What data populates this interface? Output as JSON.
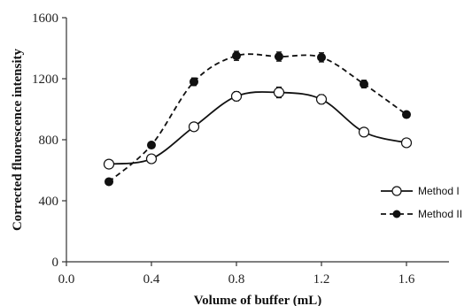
{
  "chart_data": {
    "type": "line",
    "xlabel": "Volume of buffer (mL)",
    "ylabel": "Corrected fluorescence intensity",
    "xlim": [
      0.0,
      1.8
    ],
    "ylim": [
      0,
      1600
    ],
    "x_ticks": [
      "0.0",
      "0.4",
      "0.8",
      "1.2",
      "1.6"
    ],
    "x_tick_values": [
      0.0,
      0.4,
      0.8,
      1.2,
      1.6
    ],
    "y_ticks": [
      "0",
      "400",
      "800",
      "1200",
      "1600"
    ],
    "y_tick_values": [
      0,
      400,
      800,
      1200,
      1600
    ],
    "grid": false,
    "legend_position": "right",
    "series": [
      {
        "name": "Method I",
        "marker": "open-circle",
        "line": "solid-smooth",
        "x": [
          0.2,
          0.4,
          0.6,
          0.8,
          1.0,
          1.2,
          1.4,
          1.6
        ],
        "y": [
          640,
          675,
          885,
          1085,
          1110,
          1065,
          850,
          780
        ],
        "err": [
          20,
          20,
          25,
          30,
          35,
          30,
          20,
          15
        ]
      },
      {
        "name": "Method II",
        "marker": "filled-circle",
        "line": "dashed-smooth",
        "x": [
          0.2,
          0.4,
          0.6,
          0.8,
          1.0,
          1.2,
          1.4,
          1.6
        ],
        "y": [
          525,
          765,
          1180,
          1350,
          1345,
          1340,
          1165,
          965
        ],
        "err": [
          10,
          15,
          25,
          30,
          30,
          30,
          25,
          15
        ]
      }
    ]
  }
}
